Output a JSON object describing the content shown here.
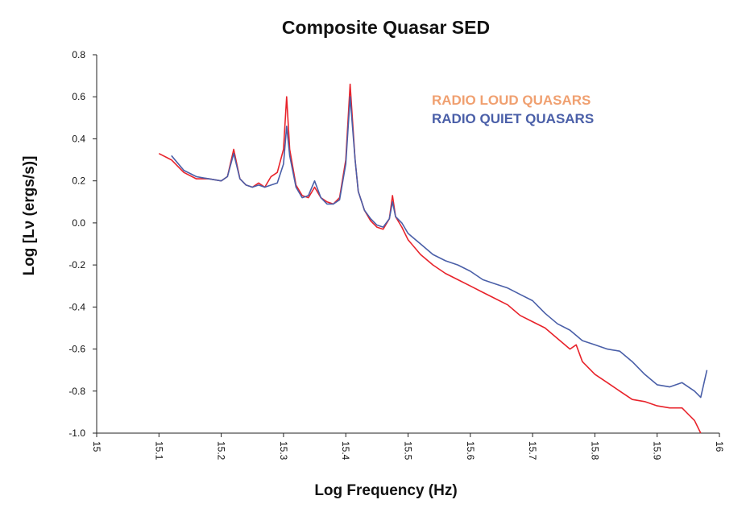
{
  "chart_data": {
    "type": "line",
    "title": "Composite Quasar SED",
    "xlabel": "Log Frequency (Hz)",
    "ylabel": "Log [Lν (ergs/s)]",
    "xlim": [
      15.0,
      16.0
    ],
    "ylim": [
      -1.0,
      0.8
    ],
    "x_ticks": [
      "15",
      "15.1",
      "15.2",
      "15.3",
      "15.4",
      "15.5",
      "15.6",
      "15.7",
      "15.8",
      "15.9",
      "16"
    ],
    "y_ticks": [
      "0.8",
      "0.6",
      "0.4",
      "0.2",
      "0.0",
      "-0.2",
      "-0.4",
      "-0.6",
      "-0.8",
      "-1.0"
    ],
    "grid": false,
    "legend_position": "top-center",
    "series": [
      {
        "name": "RADIO LOUD QUASARS",
        "color": "#e8232b",
        "legend_color": "#f0a070",
        "points": [
          [
            15.1,
            0.33
          ],
          [
            15.12,
            0.3
          ],
          [
            15.14,
            0.24
          ],
          [
            15.16,
            0.21
          ],
          [
            15.18,
            0.21
          ],
          [
            15.2,
            0.2
          ],
          [
            15.21,
            0.22
          ],
          [
            15.22,
            0.35
          ],
          [
            15.23,
            0.21
          ],
          [
            15.24,
            0.18
          ],
          [
            15.25,
            0.17
          ],
          [
            15.26,
            0.19
          ],
          [
            15.27,
            0.17
          ],
          [
            15.28,
            0.22
          ],
          [
            15.29,
            0.24
          ],
          [
            15.3,
            0.35
          ],
          [
            15.305,
            0.6
          ],
          [
            15.31,
            0.35
          ],
          [
            15.32,
            0.18
          ],
          [
            15.33,
            0.13
          ],
          [
            15.34,
            0.12
          ],
          [
            15.35,
            0.17
          ],
          [
            15.36,
            0.12
          ],
          [
            15.37,
            0.1
          ],
          [
            15.38,
            0.09
          ],
          [
            15.39,
            0.12
          ],
          [
            15.4,
            0.3
          ],
          [
            15.407,
            0.66
          ],
          [
            15.415,
            0.3
          ],
          [
            15.42,
            0.15
          ],
          [
            15.43,
            0.06
          ],
          [
            15.44,
            0.01
          ],
          [
            15.45,
            -0.02
          ],
          [
            15.46,
            -0.03
          ],
          [
            15.47,
            0.02
          ],
          [
            15.475,
            0.13
          ],
          [
            15.48,
            0.03
          ],
          [
            15.49,
            -0.02
          ],
          [
            15.5,
            -0.08
          ],
          [
            15.52,
            -0.15
          ],
          [
            15.54,
            -0.2
          ],
          [
            15.56,
            -0.24
          ],
          [
            15.58,
            -0.27
          ],
          [
            15.6,
            -0.3
          ],
          [
            15.62,
            -0.33
          ],
          [
            15.64,
            -0.36
          ],
          [
            15.66,
            -0.39
          ],
          [
            15.68,
            -0.44
          ],
          [
            15.7,
            -0.47
          ],
          [
            15.72,
            -0.5
          ],
          [
            15.74,
            -0.55
          ],
          [
            15.76,
            -0.6
          ],
          [
            15.77,
            -0.58
          ],
          [
            15.78,
            -0.66
          ],
          [
            15.8,
            -0.72
          ],
          [
            15.82,
            -0.76
          ],
          [
            15.84,
            -0.8
          ],
          [
            15.86,
            -0.84
          ],
          [
            15.88,
            -0.85
          ],
          [
            15.9,
            -0.87
          ],
          [
            15.92,
            -0.88
          ],
          [
            15.94,
            -0.88
          ],
          [
            15.95,
            -0.91
          ],
          [
            15.96,
            -0.94
          ],
          [
            15.97,
            -1.0
          ]
        ]
      },
      {
        "name": "RADIO QUIET QUASARS",
        "color": "#4a5fa8",
        "legend_color": "#4a5fa8",
        "points": [
          [
            15.12,
            0.32
          ],
          [
            15.14,
            0.25
          ],
          [
            15.16,
            0.22
          ],
          [
            15.18,
            0.21
          ],
          [
            15.2,
            0.2
          ],
          [
            15.21,
            0.22
          ],
          [
            15.22,
            0.33
          ],
          [
            15.23,
            0.21
          ],
          [
            15.24,
            0.18
          ],
          [
            15.25,
            0.17
          ],
          [
            15.26,
            0.18
          ],
          [
            15.27,
            0.17
          ],
          [
            15.28,
            0.18
          ],
          [
            15.29,
            0.19
          ],
          [
            15.3,
            0.28
          ],
          [
            15.305,
            0.46
          ],
          [
            15.31,
            0.32
          ],
          [
            15.32,
            0.17
          ],
          [
            15.33,
            0.12
          ],
          [
            15.34,
            0.13
          ],
          [
            15.35,
            0.2
          ],
          [
            15.36,
            0.12
          ],
          [
            15.37,
            0.09
          ],
          [
            15.38,
            0.09
          ],
          [
            15.39,
            0.11
          ],
          [
            15.4,
            0.28
          ],
          [
            15.407,
            0.6
          ],
          [
            15.415,
            0.3
          ],
          [
            15.42,
            0.15
          ],
          [
            15.43,
            0.06
          ],
          [
            15.44,
            0.02
          ],
          [
            15.45,
            -0.01
          ],
          [
            15.46,
            -0.02
          ],
          [
            15.47,
            0.02
          ],
          [
            15.475,
            0.1
          ],
          [
            15.48,
            0.03
          ],
          [
            15.49,
            0.0
          ],
          [
            15.5,
            -0.05
          ],
          [
            15.52,
            -0.1
          ],
          [
            15.54,
            -0.15
          ],
          [
            15.56,
            -0.18
          ],
          [
            15.58,
            -0.2
          ],
          [
            15.6,
            -0.23
          ],
          [
            15.62,
            -0.27
          ],
          [
            15.64,
            -0.29
          ],
          [
            15.66,
            -0.31
          ],
          [
            15.68,
            -0.34
          ],
          [
            15.7,
            -0.37
          ],
          [
            15.72,
            -0.43
          ],
          [
            15.74,
            -0.48
          ],
          [
            15.76,
            -0.51
          ],
          [
            15.78,
            -0.56
          ],
          [
            15.8,
            -0.58
          ],
          [
            15.82,
            -0.6
          ],
          [
            15.84,
            -0.61
          ],
          [
            15.86,
            -0.66
          ],
          [
            15.88,
            -0.72
          ],
          [
            15.9,
            -0.77
          ],
          [
            15.92,
            -0.78
          ],
          [
            15.94,
            -0.76
          ],
          [
            15.96,
            -0.8
          ],
          [
            15.97,
            -0.83
          ],
          [
            15.98,
            -0.7
          ]
        ]
      }
    ]
  }
}
